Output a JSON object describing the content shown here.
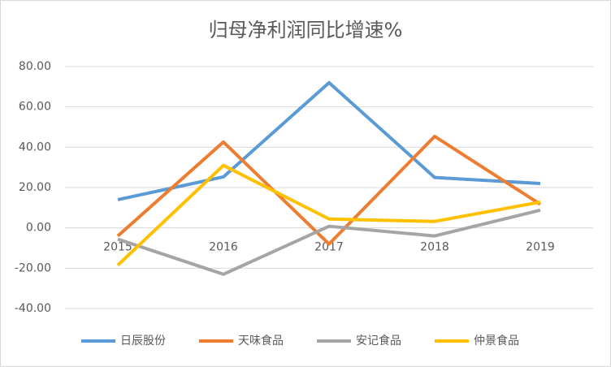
{
  "chart_data": {
    "type": "line",
    "title": "归母净利润同比增速%",
    "categories": [
      "2015",
      "2016",
      "2017",
      "2018",
      "2019"
    ],
    "series": [
      {
        "name": "日辰股份",
        "color": "#5b9bd5",
        "values": [
          14,
          25.3,
          72,
          25,
          22
        ]
      },
      {
        "name": "天味食品",
        "color": "#ed7d31",
        "values": [
          -4,
          42.6,
          -8,
          45.4,
          11.7
        ]
      },
      {
        "name": "安记食品",
        "color": "#a5a5a5",
        "values": [
          -5.6,
          -23,
          0.8,
          -4,
          8.8
        ]
      },
      {
        "name": "仲景食品",
        "color": "#ffc000",
        "values": [
          -18.5,
          31,
          4.4,
          3.2,
          12.8
        ]
      }
    ],
    "ylim": [
      -40,
      80
    ],
    "yticks": [
      {
        "value": -40,
        "label": "-40.00"
      },
      {
        "value": -20,
        "label": "-20.00"
      },
      {
        "value": 0,
        "label": "0.00"
      },
      {
        "value": 20,
        "label": "20.00"
      },
      {
        "value": 40,
        "label": "40.00"
      },
      {
        "value": 60,
        "label": "60.00"
      },
      {
        "value": 80,
        "label": "80.00"
      }
    ],
    "grid": true,
    "legend": "bottom"
  }
}
